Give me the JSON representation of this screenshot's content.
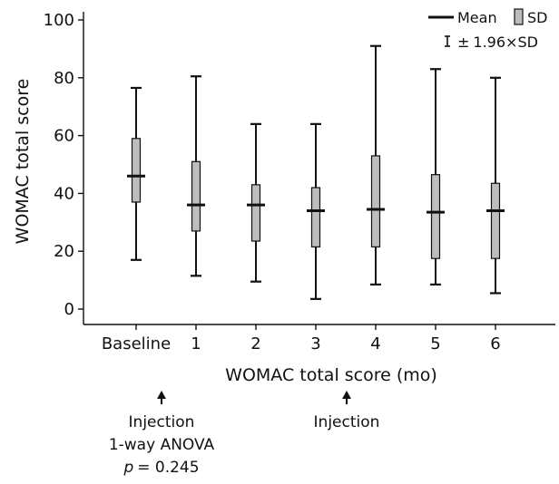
{
  "chart_data": {
    "type": "box",
    "categories": [
      "Baseline",
      "1",
      "2",
      "3",
      "4",
      "5",
      "6"
    ],
    "series": [
      {
        "name": "Mean",
        "values": [
          46,
          36,
          36,
          34,
          34.5,
          33.5,
          34
        ]
      },
      {
        "name": "SD lower",
        "values": [
          37,
          27,
          23.5,
          21.5,
          21.5,
          17.5,
          17.5
        ]
      },
      {
        "name": "SD upper",
        "values": [
          59,
          51,
          43,
          42,
          53,
          46.5,
          43.5
        ]
      },
      {
        "name": "±1.96×SD lower",
        "values": [
          17,
          11.5,
          9.5,
          3.5,
          8.5,
          8.5,
          5.5
        ]
      },
      {
        "name": "±1.96×SD upper",
        "values": [
          76.5,
          80.5,
          64,
          64,
          91,
          83,
          80
        ]
      }
    ],
    "ylim": [
      0,
      100
    ],
    "yticks": [
      0,
      20,
      40,
      60,
      80,
      100
    ],
    "xlabel": "WOMAC total score (mo)",
    "ylabel": "WOMAC total score",
    "legend": {
      "position": "top-right",
      "mean": "Mean",
      "sd": "SD",
      "ci_prefix": "±",
      "ci_value": "1.96",
      "ci_times": "×",
      "ci_suffix": "SD"
    },
    "annotations": [
      {
        "category": "Baseline",
        "lines": [
          "Injection",
          "1-way ANOVA"
        ],
        "p_label": "p",
        "p_value": "= 0.245"
      },
      {
        "category": "3",
        "lines": [
          "Injection"
        ]
      }
    ],
    "colors": {
      "box_fill": "#bdbdbd",
      "line": "#111111"
    }
  }
}
